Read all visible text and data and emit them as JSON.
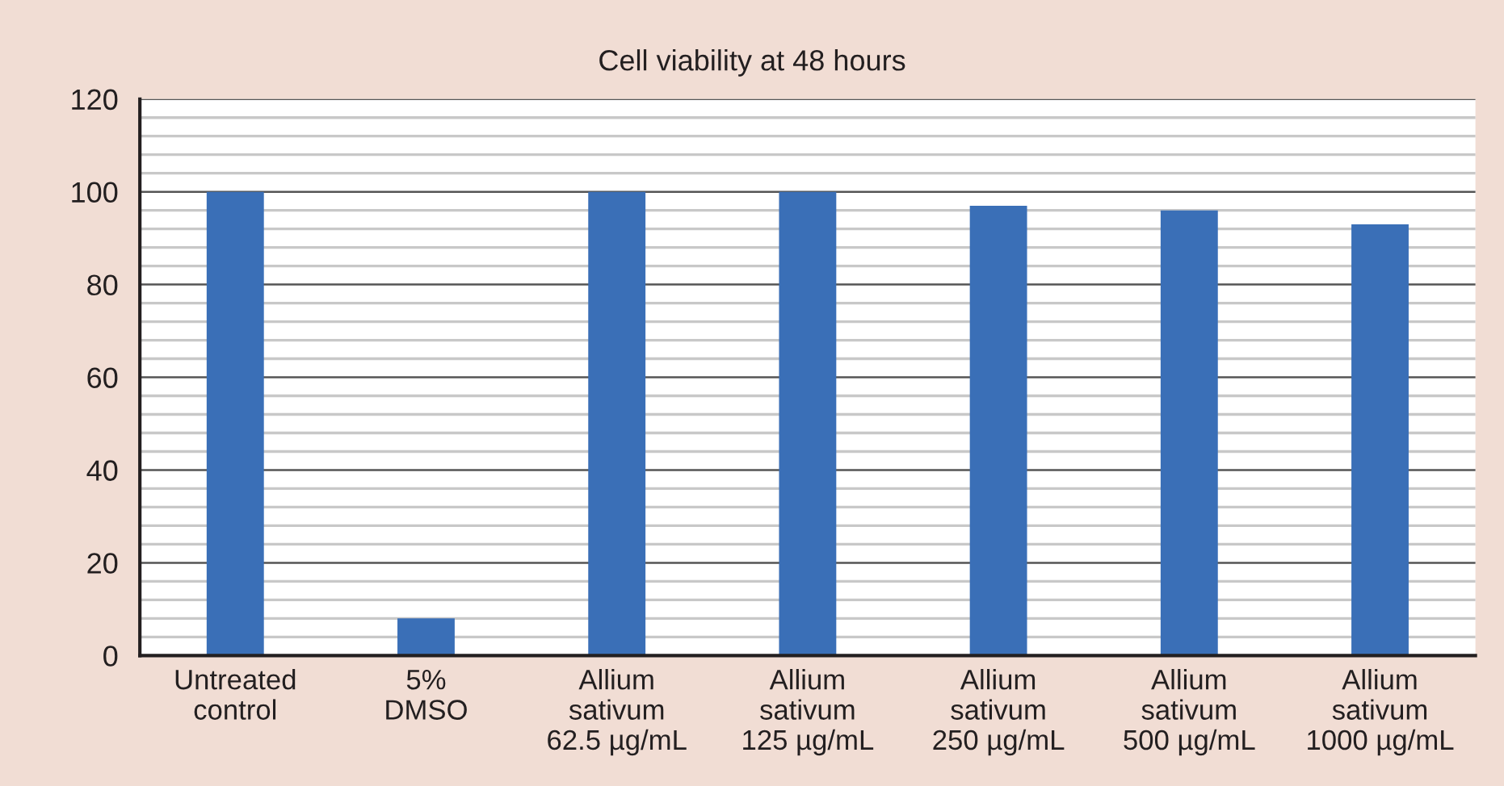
{
  "chart_data": {
    "type": "bar",
    "title": "Cell viability at 48 hours",
    "categories": [
      "Untreated\ncontrol",
      "5%\nDMSO",
      "Allium\nsativum\n62.5 µg/mL",
      "Allium\nsativum\n125 µg/mL",
      "Allium\nsativum\n250 µg/mL",
      "Allium\nsativum\n500 µg/mL",
      "Allium\nsativum\n1000 µg/mL"
    ],
    "values": [
      100,
      8,
      100,
      100,
      97,
      96,
      93
    ],
    "color": "#3a6fb7",
    "ylim": [
      0,
      120
    ],
    "yticks": [
      0,
      {
        "value": 4,
        "label": null
      },
      {
        "value": 8,
        "label": null
      },
      {
        "value": 12,
        "label": null
      },
      {
        "value": 16,
        "label": null
      },
      20,
      {
        "value": 24,
        "label": null
      },
      {
        "value": 28,
        "label": null
      },
      {
        "value": 32,
        "label": null
      },
      {
        "value": 36,
        "label": null
      },
      40,
      {
        "value": 44,
        "label": null
      },
      {
        "value": 48,
        "label": null
      },
      {
        "value": 52,
        "label": null
      },
      {
        "value": 56,
        "label": null
      },
      60,
      {
        "value": 64,
        "label": null
      },
      {
        "value": 68,
        "label": null
      },
      {
        "value": 72,
        "label": null
      },
      {
        "value": 76,
        "label": null
      },
      80,
      {
        "value": 84,
        "label": null
      },
      {
        "value": 88,
        "label": null
      },
      {
        "value": 92,
        "label": null
      },
      {
        "value": 96,
        "label": null
      },
      100,
      {
        "value": 104,
        "label": null
      },
      {
        "value": 108,
        "label": null
      },
      {
        "value": 112,
        "label": null
      },
      {
        "value": 116,
        "label": null
      },
      120
    ],
    "grid": "y"
  }
}
